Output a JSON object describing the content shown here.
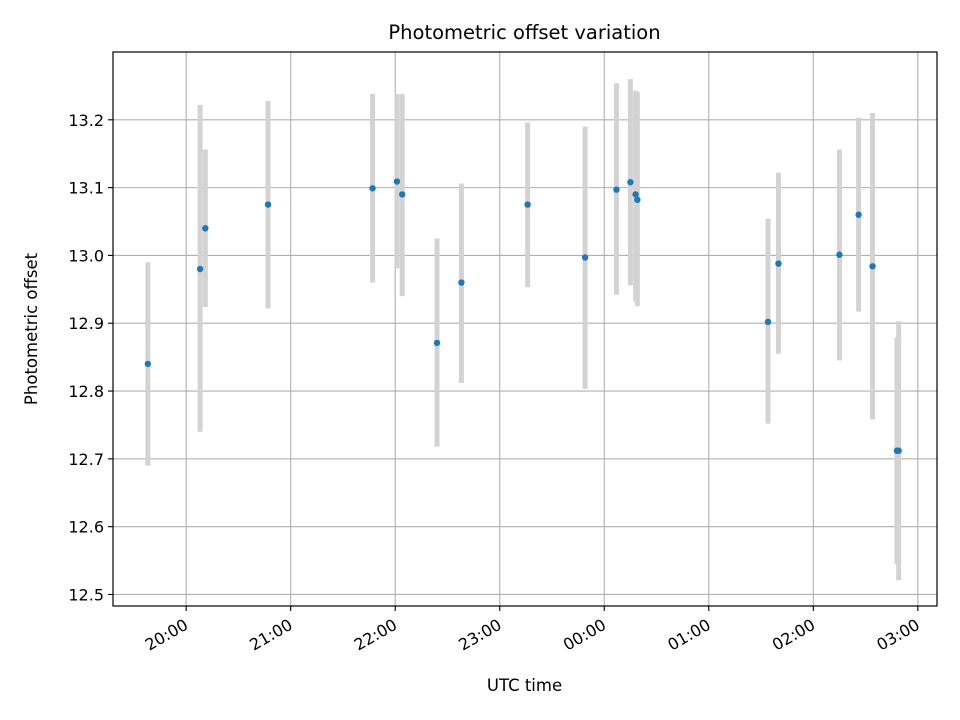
{
  "chart_data": {
    "type": "scatter",
    "title": "Photometric offset variation",
    "xlabel": "UTC time",
    "ylabel": "Photometric offset",
    "grid": true,
    "xlim": [
      "19:18",
      "27:11"
    ],
    "ylim": [
      12.483,
      13.3
    ],
    "x_ticks": [
      {
        "value": "20:00",
        "label": "20:00"
      },
      {
        "value": "21:00",
        "label": "21:00"
      },
      {
        "value": "22:00",
        "label": "22:00"
      },
      {
        "value": "23:00",
        "label": "23:00"
      },
      {
        "value": "24:00",
        "label": "00:00"
      },
      {
        "value": "25:00",
        "label": "01:00"
      },
      {
        "value": "26:00",
        "label": "02:00"
      },
      {
        "value": "27:00",
        "label": "03:00"
      }
    ],
    "y_ticks": [
      12.5,
      12.6,
      12.7,
      12.8,
      12.9,
      13.0,
      13.1,
      13.2
    ],
    "colors": {
      "point": "#1f77b4",
      "errorbar": "#d3d3d3",
      "grid": "#b0b0b0",
      "axes": "#000000"
    },
    "series": [
      {
        "points": [
          {
            "time": "19:38",
            "y": 12.84,
            "ylow": 12.69,
            "yhigh": 12.99
          },
          {
            "time": "20:08",
            "y": 12.98,
            "ylow": 12.74,
            "yhigh": 13.222
          },
          {
            "time": "20:11",
            "y": 13.04,
            "ylow": 12.924,
            "yhigh": 13.156
          },
          {
            "time": "20:47",
            "y": 13.075,
            "ylow": 12.922,
            "yhigh": 13.228
          },
          {
            "time": "21:47",
            "y": 13.099,
            "ylow": 12.96,
            "yhigh": 13.238
          },
          {
            "time": "22:01",
            "y": 13.109,
            "ylow": 12.981,
            "yhigh": 13.238
          },
          {
            "time": "22:04",
            "y": 13.09,
            "ylow": 12.94,
            "yhigh": 13.238
          },
          {
            "time": "22:24",
            "y": 12.871,
            "ylow": 12.718,
            "yhigh": 13.025
          },
          {
            "time": "22:38",
            "y": 12.96,
            "ylow": 12.812,
            "yhigh": 13.106
          },
          {
            "time": "23:16",
            "y": 13.075,
            "ylow": 12.953,
            "yhigh": 13.196
          },
          {
            "time": "23:49",
            "y": 12.997,
            "ylow": 12.803,
            "yhigh": 13.19
          },
          {
            "time": "24:07",
            "y": 13.097,
            "ylow": 12.942,
            "yhigh": 13.254
          },
          {
            "time": "24:15",
            "y": 13.108,
            "ylow": 12.956,
            "yhigh": 13.26
          },
          {
            "time": "24:18",
            "y": 13.09,
            "ylow": 12.932,
            "yhigh": 13.243
          },
          {
            "time": "24:19",
            "y": 13.082,
            "ylow": 12.925,
            "yhigh": 13.241
          },
          {
            "time": "25:34",
            "y": 12.902,
            "ylow": 12.752,
            "yhigh": 13.054
          },
          {
            "time": "25:40",
            "y": 12.988,
            "ylow": 12.855,
            "yhigh": 13.122
          },
          {
            "time": "26:15",
            "y": 13.001,
            "ylow": 12.845,
            "yhigh": 13.156
          },
          {
            "time": "26:26",
            "y": 13.06,
            "ylow": 12.917,
            "yhigh": 13.203
          },
          {
            "time": "26:34",
            "y": 12.984,
            "ylow": 12.758,
            "yhigh": 13.21
          },
          {
            "time": "26:48",
            "y": 12.712,
            "ylow": 12.545,
            "yhigh": 12.879
          },
          {
            "time": "26:49",
            "y": 12.712,
            "ylow": 12.521,
            "yhigh": 12.903
          }
        ]
      }
    ]
  }
}
